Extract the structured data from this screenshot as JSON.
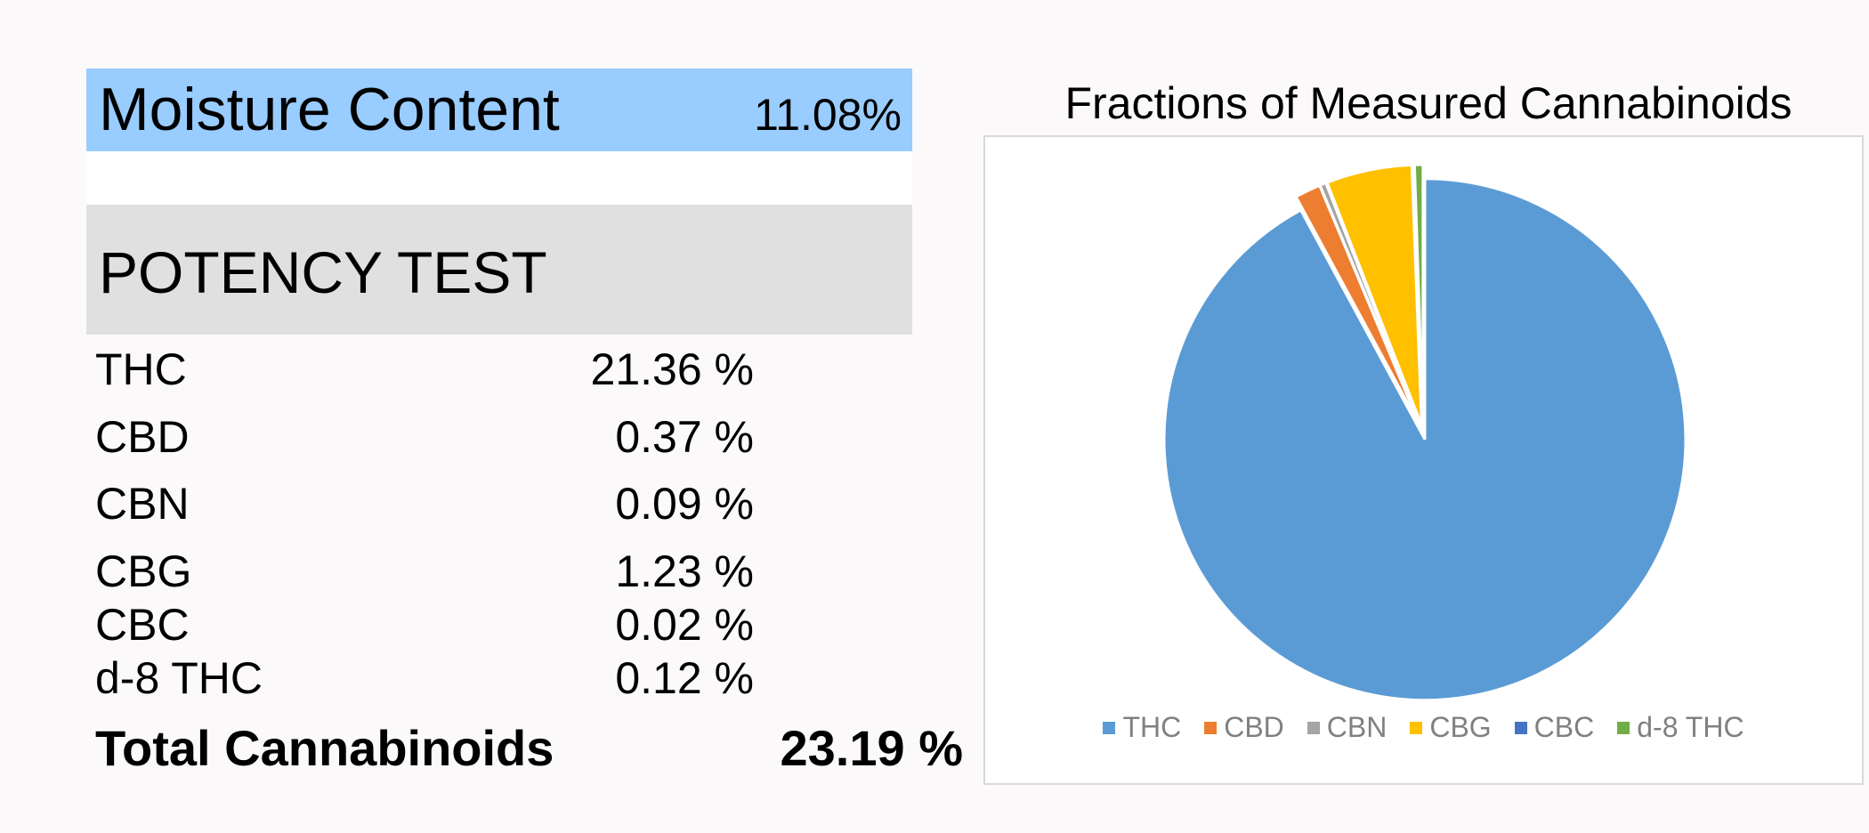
{
  "moisture": {
    "label": "Moisture Content",
    "value": "11.08%"
  },
  "potency": {
    "title": "POTENCY TEST",
    "rows": [
      {
        "name": "THC",
        "value": "21.36 %"
      },
      {
        "name": "CBD",
        "value": "0.37 %"
      },
      {
        "name": "CBN",
        "value": "0.09 %"
      },
      {
        "name": "CBG",
        "value": "1.23 %"
      },
      {
        "name": "CBC",
        "value": "0.02 %"
      },
      {
        "name": "d-8 THC",
        "value": "0.12 %"
      }
    ],
    "total_label": "Total Cannabinoids",
    "total_value": "23.19 %"
  },
  "chart_data": {
    "type": "pie",
    "title": "Fractions of Measured Cannabinoids",
    "categories": [
      "THC",
      "CBD",
      "CBN",
      "CBG",
      "CBC",
      "d-8 THC"
    ],
    "values": [
      21.36,
      0.37,
      0.09,
      1.23,
      0.02,
      0.12
    ],
    "colors": [
      "#5b9bd5",
      "#ed7d31",
      "#a5a5a5",
      "#ffc000",
      "#4472c4",
      "#70ad47"
    ],
    "exploded": true,
    "legend_position": "bottom"
  }
}
